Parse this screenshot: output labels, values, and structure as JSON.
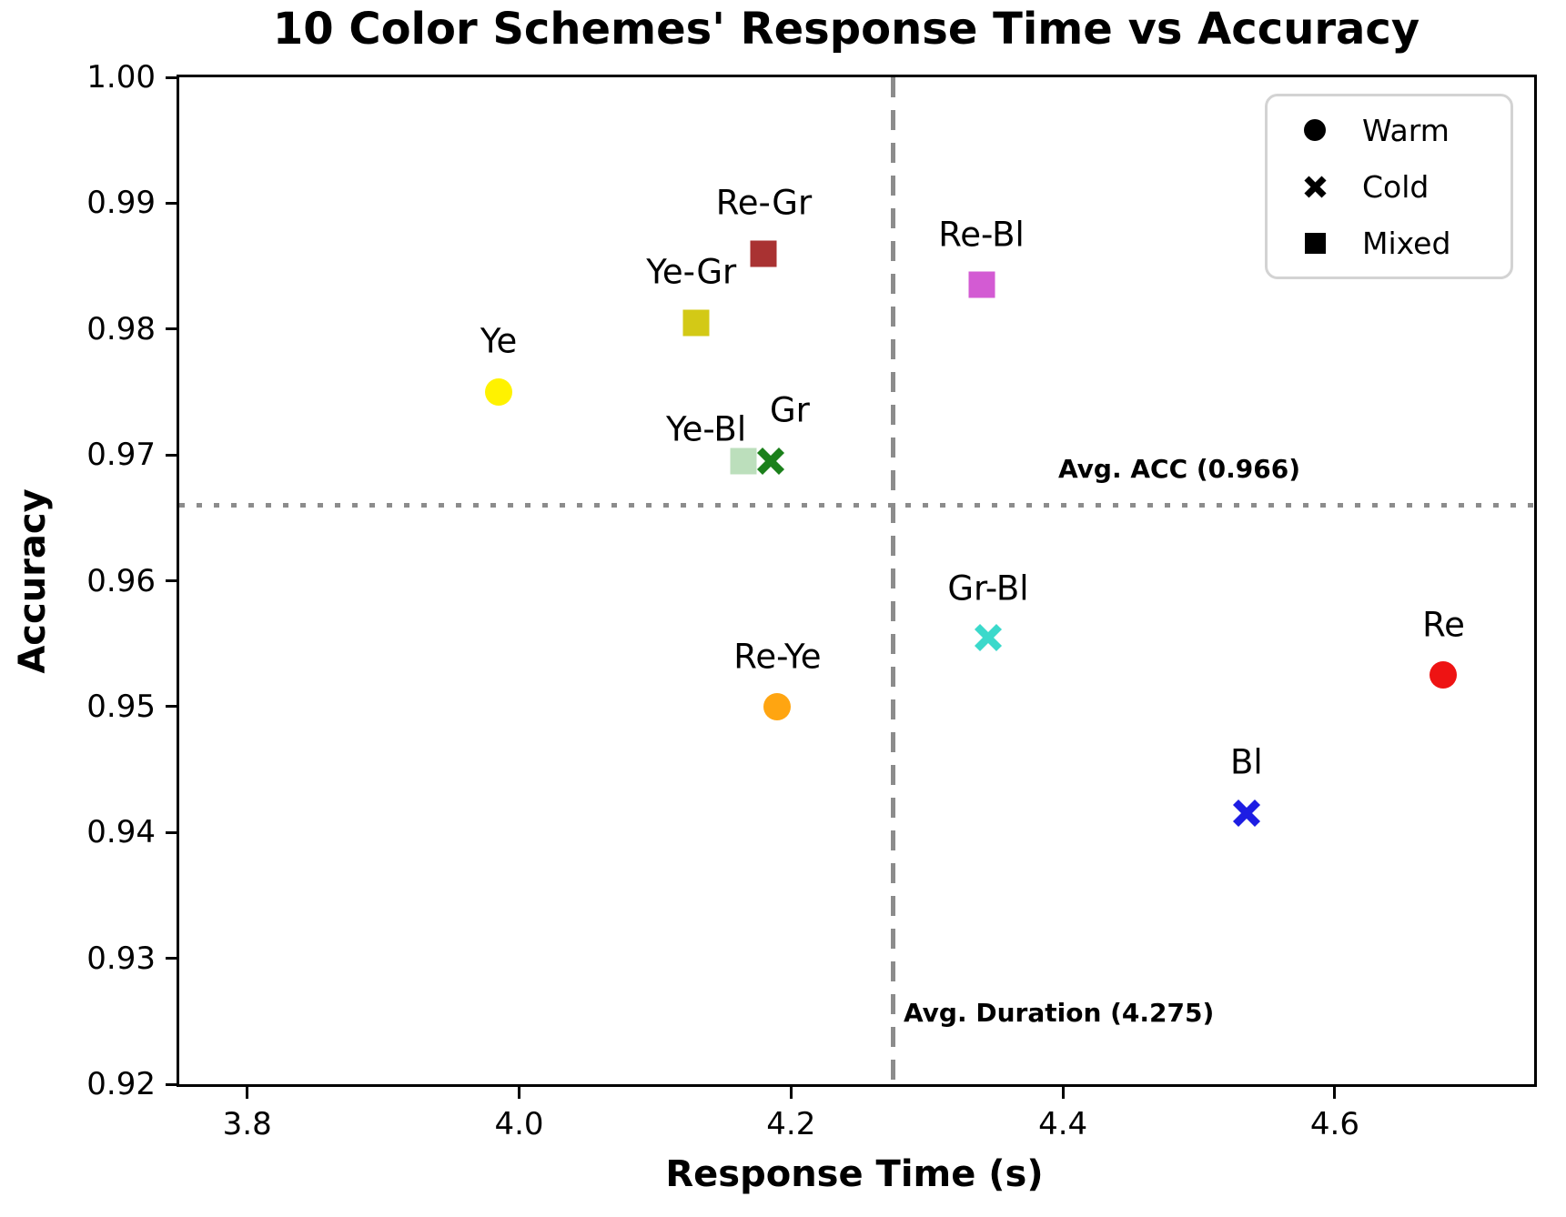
{
  "chart_data": {
    "type": "scatter",
    "title": "10 Color Schemes' Response Time vs Accuracy",
    "xlabel": "Response Time (s)",
    "ylabel": "Accuracy",
    "xlim": [
      3.75,
      4.7466
    ],
    "ylim": [
      0.92,
      1.0
    ],
    "grid": false,
    "x_ticks": [
      {
        "value": 3.8,
        "label": "3.8"
      },
      {
        "value": 4.0,
        "label": "4.0"
      },
      {
        "value": 4.2,
        "label": "4.2"
      },
      {
        "value": 4.4,
        "label": "4.4"
      },
      {
        "value": 4.6,
        "label": "4.6"
      }
    ],
    "y_ticks": [
      {
        "value": 1.0,
        "label": "1.00"
      },
      {
        "value": 0.99,
        "label": "0.99"
      },
      {
        "value": 0.98,
        "label": "0.98"
      },
      {
        "value": 0.97,
        "label": "0.97"
      },
      {
        "value": 0.96,
        "label": "0.96"
      },
      {
        "value": 0.95,
        "label": "0.95"
      },
      {
        "value": 0.94,
        "label": "0.94"
      },
      {
        "value": 0.93,
        "label": "0.93"
      },
      {
        "value": 0.92,
        "label": "0.92"
      }
    ],
    "avg_lines": {
      "vertical": {
        "value": 4.275,
        "label": "Avg. Duration (4.275)",
        "style": "dashed",
        "color": "#8c8c8c"
      },
      "horizontal": {
        "value": 0.966,
        "label": "Avg. ACC (0.966)",
        "style": "dotted",
        "color": "#8c8c8c"
      }
    },
    "legend": {
      "position": "upper right",
      "entries": [
        {
          "label": "Warm",
          "marker": "circle"
        },
        {
          "label": "Cold",
          "marker": "x"
        },
        {
          "label": "Mixed",
          "marker": "square"
        }
      ]
    },
    "series": [
      {
        "name": "Ye",
        "group": "Warm",
        "marker": "circle",
        "color": "#fff200",
        "x": 3.985,
        "y": 0.975,
        "label_dx": 0,
        "label_dy": -56
      },
      {
        "name": "Ye-Gr",
        "group": "Mixed",
        "marker": "square",
        "color": "#d3c916",
        "x": 4.13,
        "y": 0.9805,
        "label_dx": -5,
        "label_dy": -56
      },
      {
        "name": "Re-Gr",
        "group": "Mixed",
        "marker": "square",
        "color": "#a93232",
        "x": 4.18,
        "y": 0.986,
        "label_dx": 0,
        "label_dy": -56
      },
      {
        "name": "Ye-Bl",
        "group": "Mixed",
        "marker": "square",
        "color": "#bcdfbc",
        "x": 4.165,
        "y": 0.9695,
        "label_dx": -41,
        "label_dy": -35
      },
      {
        "name": "Gr",
        "group": "Cold",
        "marker": "x",
        "color": "#1b801b",
        "x": 4.185,
        "y": 0.9695,
        "label_dx": 21,
        "label_dy": -56
      },
      {
        "name": "Re-Ye",
        "group": "Warm",
        "marker": "circle",
        "color": "#ffa511",
        "x": 4.19,
        "y": 0.95,
        "label_dx": 0,
        "label_dy": -55
      },
      {
        "name": "Re-Bl",
        "group": "Mixed",
        "marker": "square",
        "color": "#d35bd3",
        "x": 4.34,
        "y": 0.9835,
        "label_dx": 0,
        "label_dy": -55
      },
      {
        "name": "Gr-Bl",
        "group": "Cold",
        "marker": "x",
        "color": "#3bd9cb",
        "x": 4.345,
        "y": 0.9555,
        "label_dx": 0,
        "label_dy": -54
      },
      {
        "name": "Bl",
        "group": "Cold",
        "marker": "x",
        "color": "#1d1de3",
        "x": 4.535,
        "y": 0.9415,
        "label_dx": 0,
        "label_dy": -56
      },
      {
        "name": "Re",
        "group": "Warm",
        "marker": "circle",
        "color": "#ee1313",
        "x": 4.68,
        "y": 0.9525,
        "label_dx": 0,
        "label_dy": -55
      }
    ]
  }
}
